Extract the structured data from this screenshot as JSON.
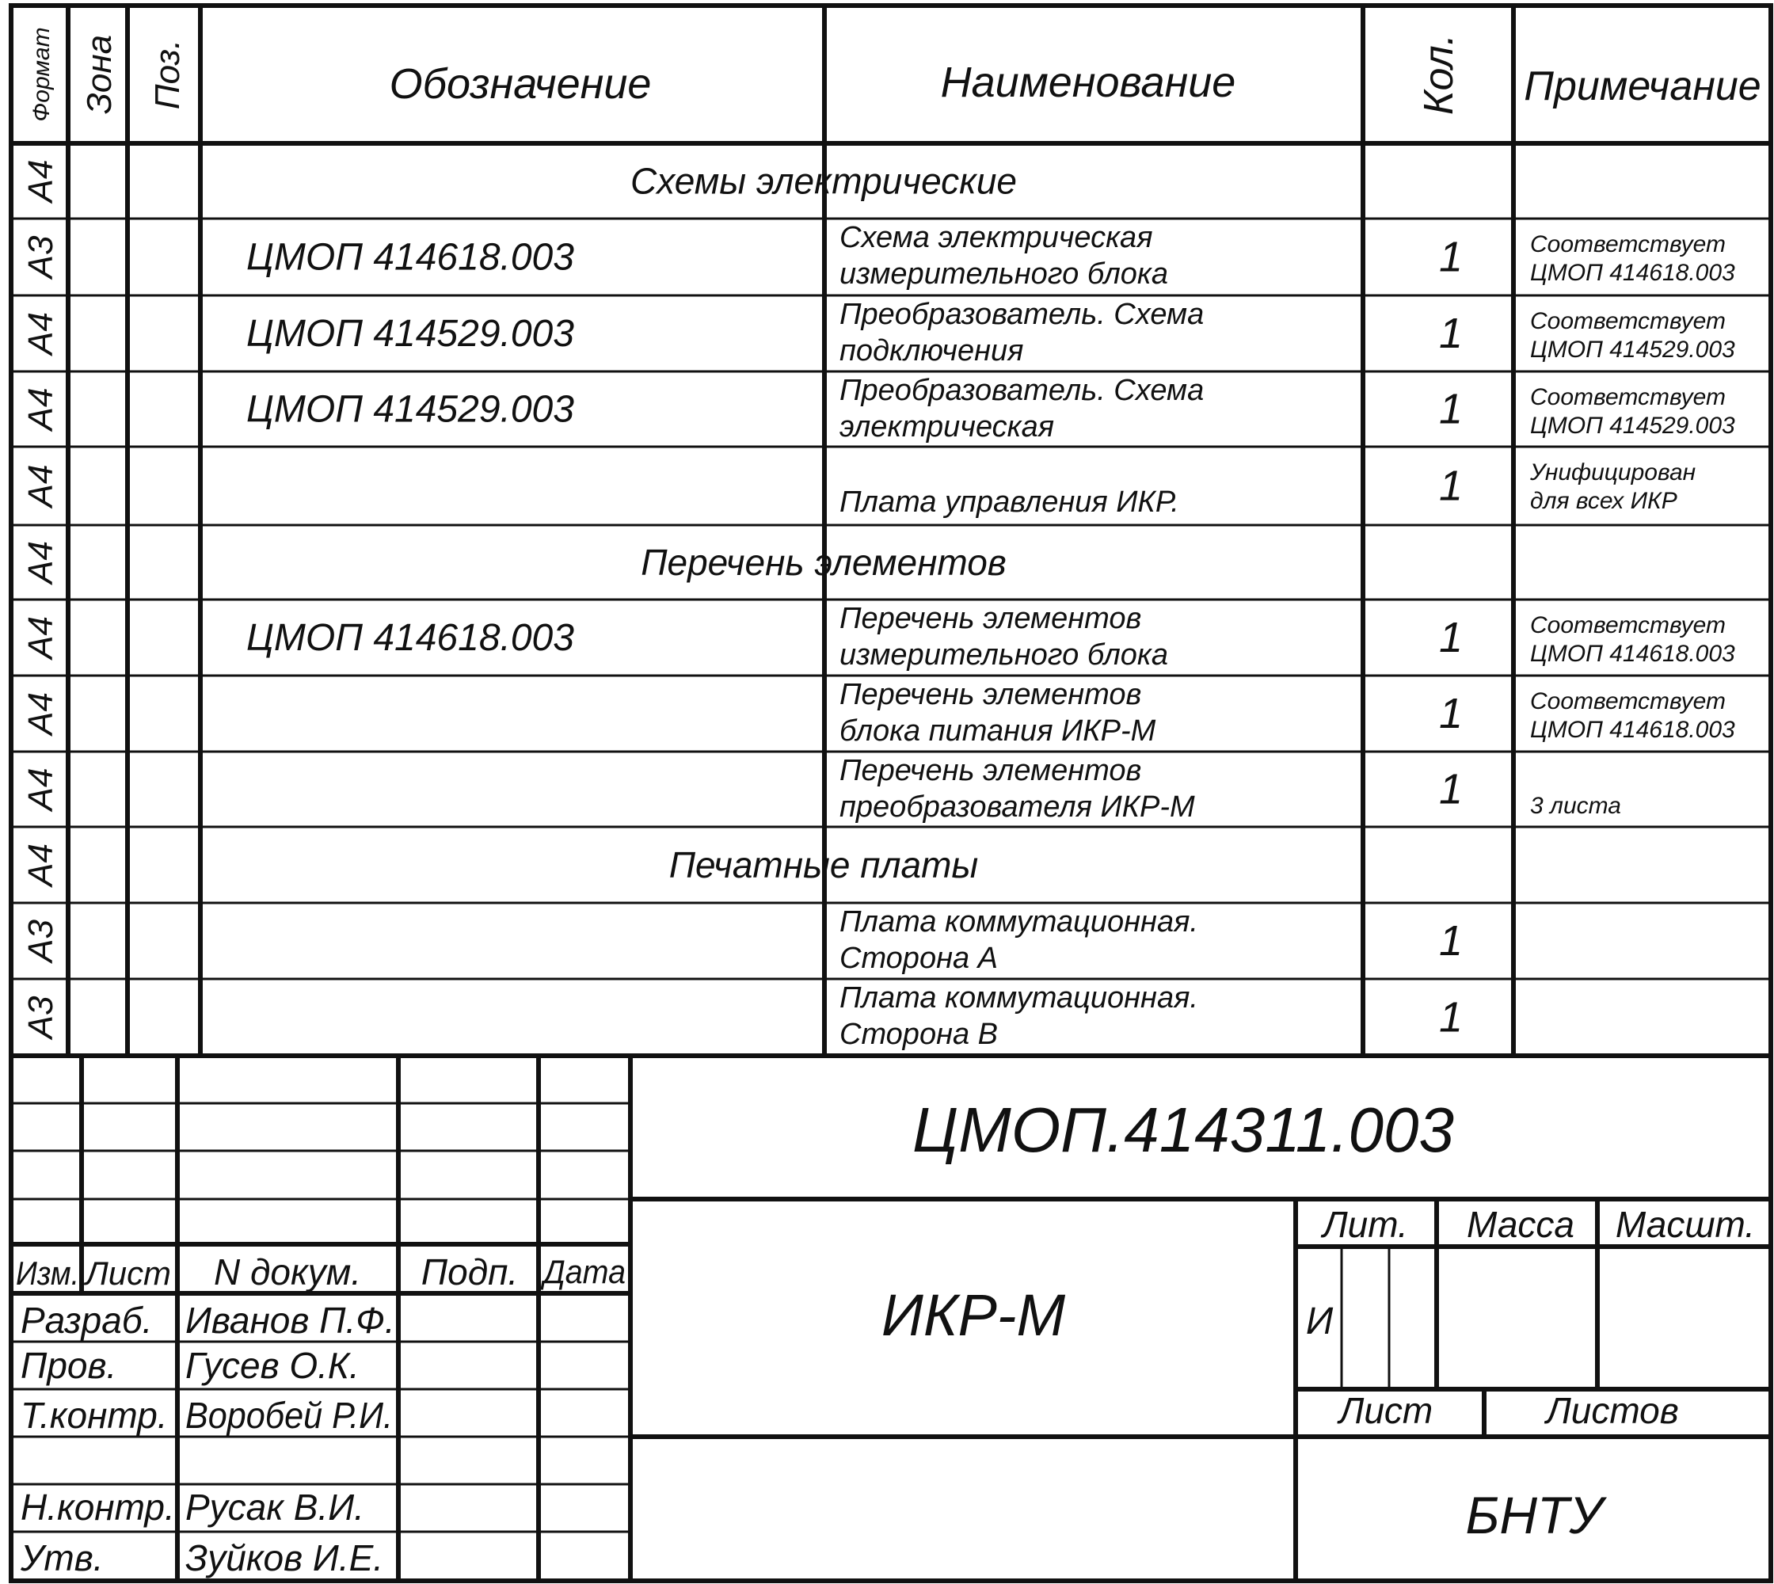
{
  "spec_table": {
    "headers": {
      "format": "Формат",
      "zone": "Зона",
      "position": "Поз.",
      "designation": "Обозначение",
      "name": "Наименование",
      "quantity": "Кол.",
      "note": "Примечание"
    },
    "rows": [
      {
        "format": "А4",
        "section": "Схемы электрические"
      },
      {
        "format": "А3",
        "designation": "ЦМОП 414618.003",
        "name": [
          "Схема электрическая",
          "измерительного блока"
        ],
        "quantity": "1",
        "note": [
          "Соответствует",
          "ЦМОП 414618.003"
        ]
      },
      {
        "format": "А4",
        "designation": "ЦМОП 414529.003",
        "name": [
          "Преобразователь. Схема",
          "подключения"
        ],
        "quantity": "1",
        "note": [
          "Соответствует",
          "ЦМОП 414529.003"
        ]
      },
      {
        "format": "А4",
        "designation": "ЦМОП 414529.003",
        "name": [
          "Преобразователь. Схема",
          "электрическая"
        ],
        "quantity": "1",
        "note": [
          "Соответствует",
          "ЦМОП 414529.003"
        ]
      },
      {
        "format": "А4",
        "designation": "",
        "name": [
          "",
          "Плата управления ИКР."
        ],
        "quantity": "1",
        "note": [
          "Унифицирован",
          "для всех ИКР"
        ]
      },
      {
        "format": "А4",
        "section": "Перечень элементов"
      },
      {
        "format": "А4",
        "designation": "ЦМОП 414618.003",
        "name": [
          "Перечень элементов",
          "измерительного блока"
        ],
        "quantity": "1",
        "note": [
          "Соответствует",
          "ЦМОП 414618.003"
        ]
      },
      {
        "format": "А4",
        "designation": "",
        "name": [
          "Перечень элементов",
          "блока питания ИКР-М"
        ],
        "quantity": "1",
        "note": [
          "Соответствует",
          "ЦМОП 414618.003"
        ]
      },
      {
        "format": "А4",
        "designation": "",
        "name": [
          "Перечень элементов",
          "преобразователя ИКР-М"
        ],
        "quantity": "1",
        "note": [
          "",
          "3 листа"
        ]
      },
      {
        "format": "А4",
        "section": "Печатные платы"
      },
      {
        "format": "А3",
        "designation": "",
        "name": [
          "Плата коммутационная.",
          "Сторона А"
        ],
        "quantity": "1",
        "note": [
          "",
          ""
        ]
      },
      {
        "format": "А3",
        "designation": "",
        "name": [
          "Плата коммутационная.",
          "Сторона В"
        ],
        "quantity": "1",
        "note": [
          "",
          ""
        ]
      }
    ]
  },
  "title_block": {
    "document_code": "ЦМОП.414311.003",
    "product_name": "ИКР-М",
    "organization": "БНТУ",
    "columns": {
      "change": "Изм.",
      "sheet": "Лист",
      "doc_number": "N докум.",
      "signature": "Подп.",
      "date": "Дата"
    },
    "roles": [
      {
        "role": "Разраб.",
        "person": "Иванов П.Ф."
      },
      {
        "role": "Пров.",
        "person": "Гусев О.К."
      },
      {
        "role": "Т.контр.",
        "person": "Воробей Р.И."
      },
      {
        "role": "Н.контр.",
        "person": "Русак В.И."
      },
      {
        "role": "Утв.",
        "person": "Зуйков И.Е."
      }
    ],
    "letter_label": "Лит.",
    "letter_value": "И",
    "mass_label": "Масса",
    "scale_label": "Масшт.",
    "sheet_label": "Лист",
    "sheets_label": "Листов"
  }
}
